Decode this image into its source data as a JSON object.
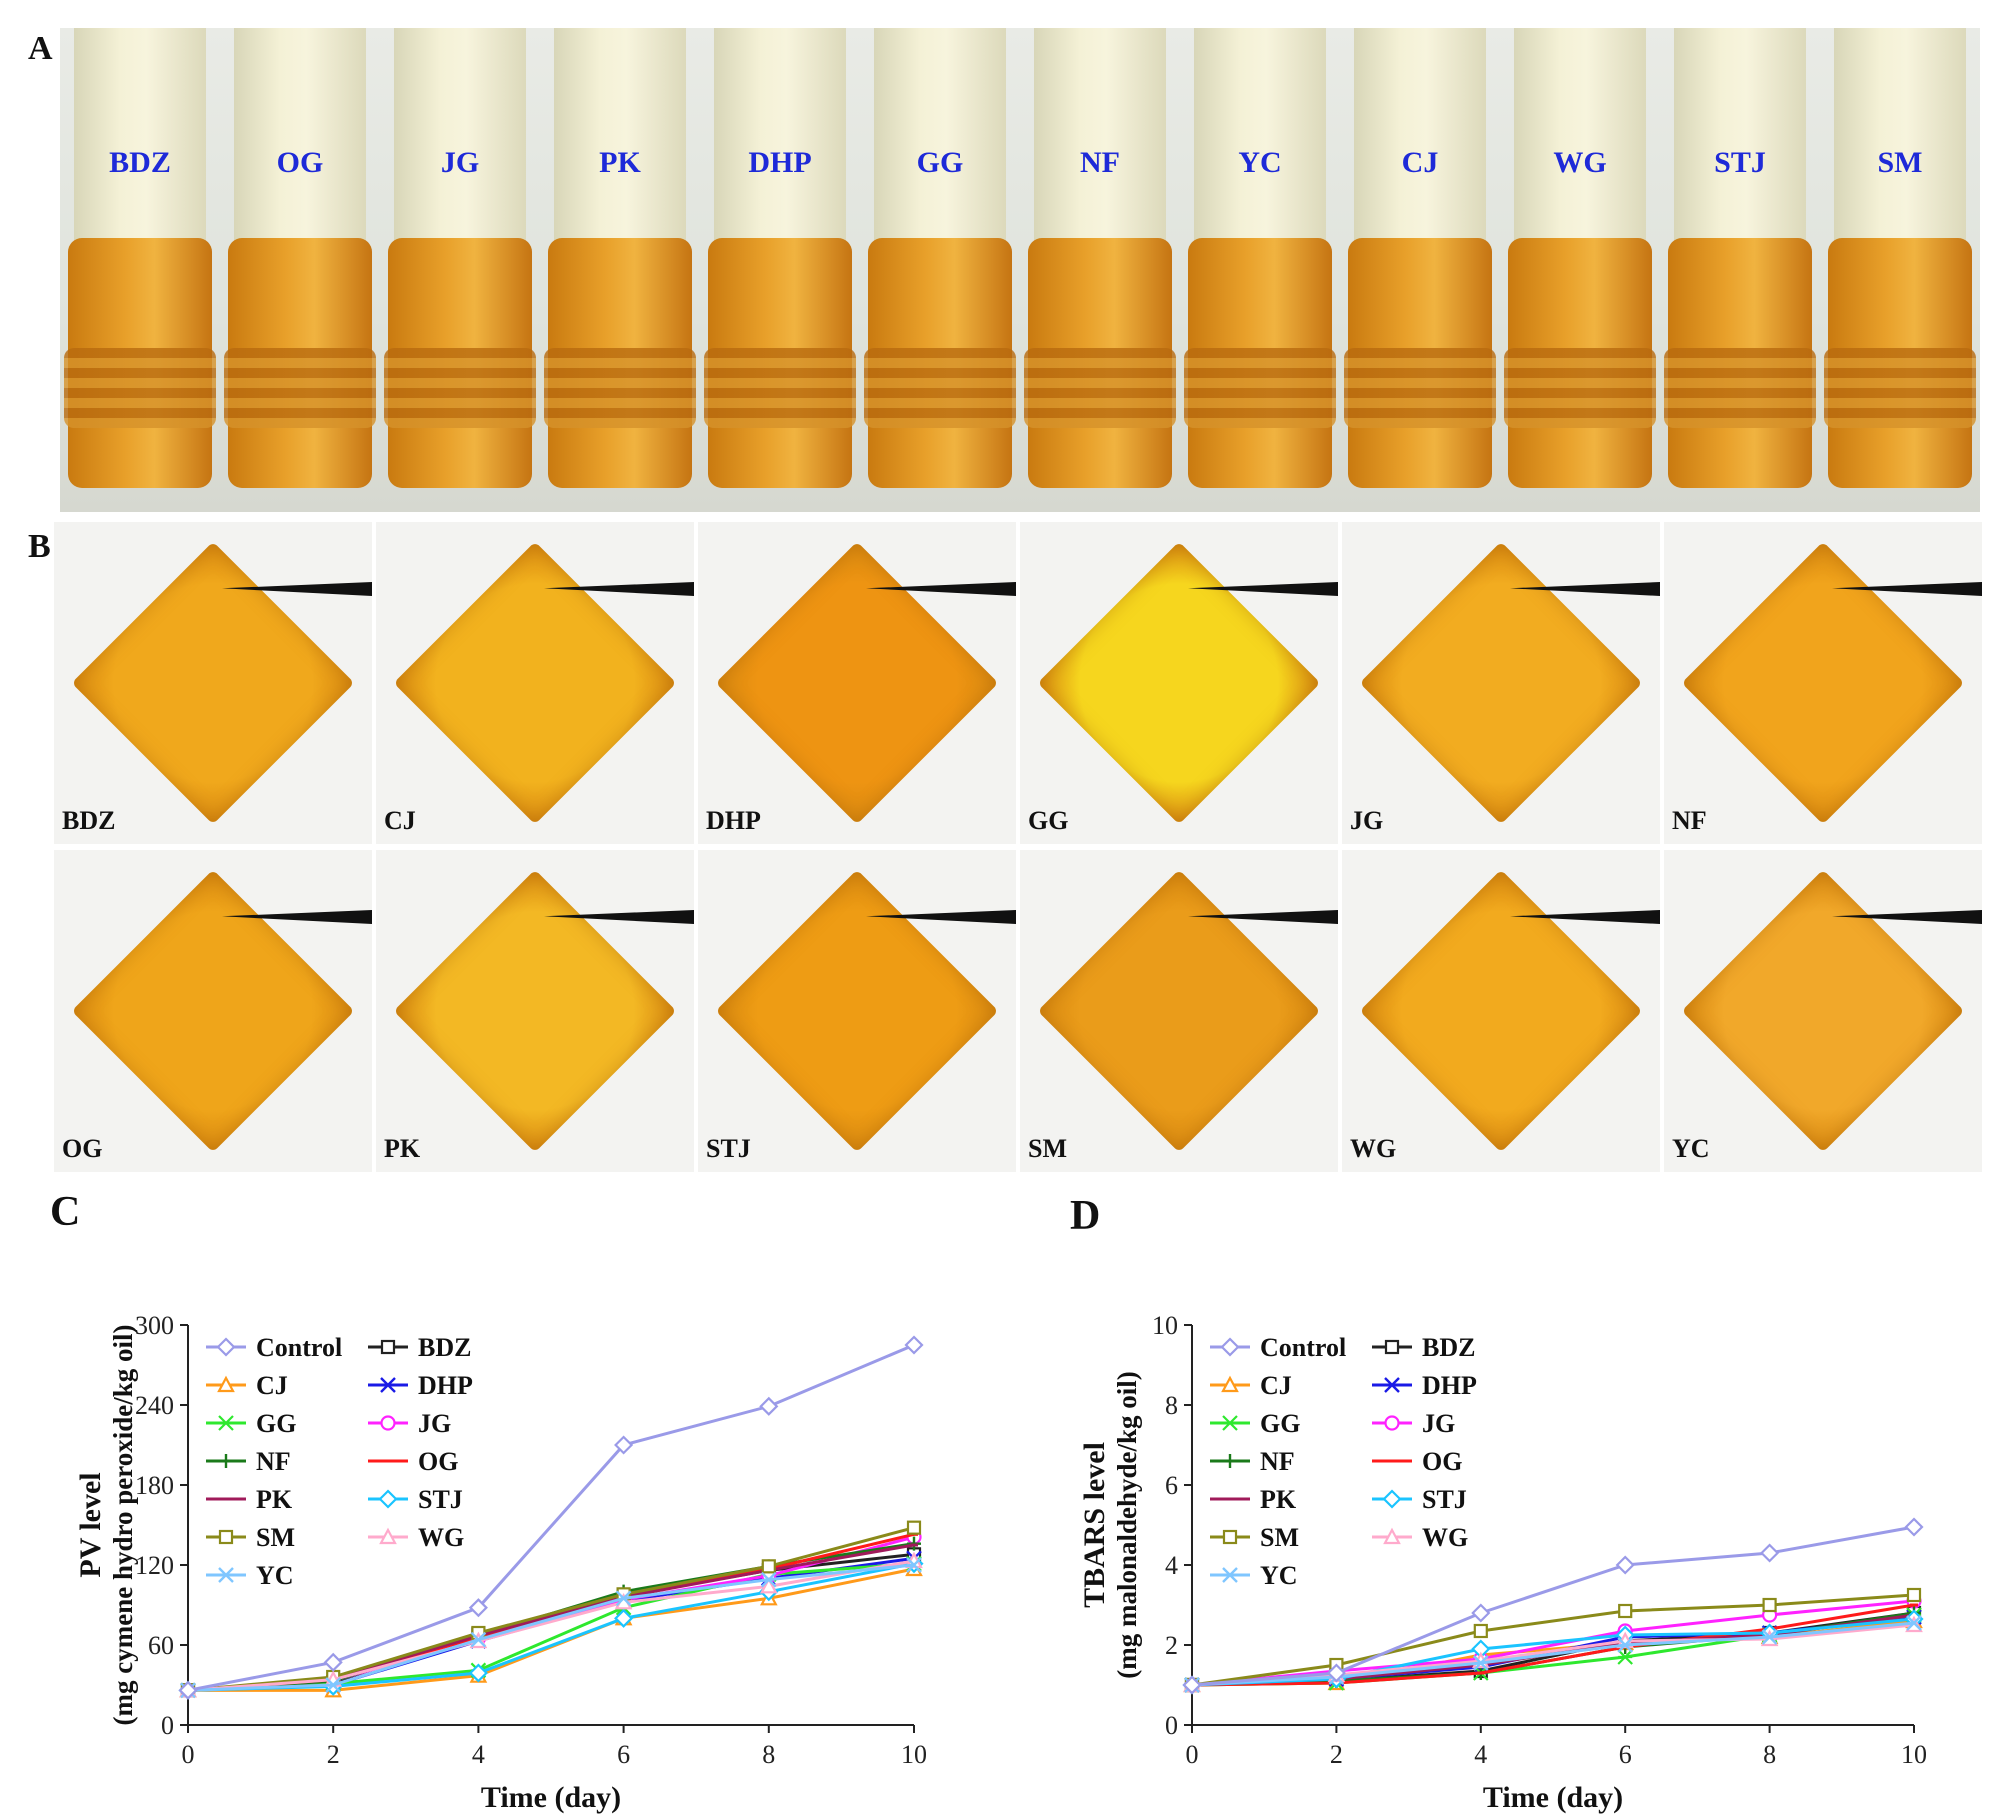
{
  "panels": {
    "A": "A",
    "B": "B",
    "C": "C",
    "D": "D"
  },
  "tube_labels": [
    "BDZ",
    "OG",
    "JG",
    "PK",
    "DHP",
    "GG",
    "NF",
    "YC",
    "CJ",
    "WG",
    "STJ",
    "SM"
  ],
  "film_labels": [
    "BDZ",
    "CJ",
    "DHP",
    "GG",
    "JG",
    "NF",
    "OG",
    "PK",
    "STJ",
    "SM",
    "WG",
    "YC"
  ],
  "film_colors": [
    "#f0a81c",
    "#f2b21e",
    "#ee9412",
    "#f6d61e",
    "#f2ac20",
    "#f1a41c",
    "#efa51a",
    "#f3b824",
    "#ee9c14",
    "#ea9c1a",
    "#f2aa1e",
    "#f1a82a"
  ],
  "colors": {
    "Control": "#9a9ae8",
    "BDZ": "#222222",
    "CJ": "#ff9a1a",
    "DHP": "#1a1ae6",
    "GG": "#2ee82e",
    "JG": "#ff22ff",
    "NF": "#1a7a1a",
    "OG": "#ff1a1a",
    "PK": "#a01a5a",
    "STJ": "#1ac4ff",
    "SM": "#8a8a1a",
    "WG": "#ffaacc",
    "YC": "#7fc6ff"
  },
  "chart_data": [
    {
      "id": "C",
      "type": "line",
      "xlabel": "Time (day)",
      "ylabel": "PV level",
      "ylabel2": "(mg cymene hydro peroxide/kg oil)",
      "xlim": [
        0,
        10
      ],
      "ylim": [
        0,
        300
      ],
      "xticks": [
        0,
        2,
        4,
        6,
        8,
        10
      ],
      "yticks": [
        0,
        60,
        120,
        180,
        240,
        300
      ],
      "x": [
        0,
        2,
        4,
        6,
        8,
        10
      ],
      "series": [
        {
          "name": "Control",
          "marker": "diamond",
          "values": [
            26,
            47,
            88,
            210,
            239,
            285
          ]
        },
        {
          "name": "BDZ",
          "marker": "square",
          "values": [
            26,
            32,
            68,
            97,
            116,
            128
          ]
        },
        {
          "name": "CJ",
          "marker": "triangle",
          "values": [
            26,
            26,
            37,
            80,
            95,
            117
          ]
        },
        {
          "name": "DHP",
          "marker": "x",
          "values": [
            26,
            30,
            63,
            93,
            110,
            125
          ]
        },
        {
          "name": "GG",
          "marker": "star",
          "values": [
            26,
            31,
            41,
            88,
            113,
            121
          ]
        },
        {
          "name": "JG",
          "marker": "circle",
          "values": [
            26,
            33,
            65,
            94,
            112,
            141
          ]
        },
        {
          "name": "NF",
          "marker": "plus",
          "values": [
            26,
            33,
            67,
            100,
            119,
            136
          ]
        },
        {
          "name": "OG",
          "marker": "line",
          "values": [
            26,
            34,
            66,
            96,
            117,
            143
          ]
        },
        {
          "name": "PK",
          "marker": "line",
          "values": [
            26,
            35,
            67,
            96,
            116,
            135
          ]
        },
        {
          "name": "STJ",
          "marker": "diamond",
          "values": [
            26,
            29,
            39,
            80,
            100,
            121
          ]
        },
        {
          "name": "SM",
          "marker": "square",
          "values": [
            26,
            36,
            69,
            98,
            119,
            148
          ]
        },
        {
          "name": "WG",
          "marker": "triangle",
          "values": [
            26,
            34,
            63,
            92,
            104,
            123
          ]
        },
        {
          "name": "YC",
          "marker": "x",
          "values": [
            26,
            30,
            64,
            95,
            109,
            120
          ]
        }
      ]
    },
    {
      "id": "D",
      "type": "line",
      "xlabel": "Time (day)",
      "ylabel": "TBARS level",
      "ylabel2": "(mg malonaldehyde/kg oil)",
      "xlim": [
        0,
        10
      ],
      "ylim": [
        0,
        10
      ],
      "xticks": [
        0,
        2,
        4,
        6,
        8,
        10
      ],
      "yticks": [
        0,
        2,
        4,
        6,
        8,
        10
      ],
      "x": [
        0,
        2,
        4,
        6,
        8,
        10
      ],
      "series": [
        {
          "name": "Control",
          "marker": "diamond",
          "values": [
            1.0,
            1.3,
            2.8,
            4.0,
            4.3,
            4.95
          ]
        },
        {
          "name": "BDZ",
          "marker": "square",
          "values": [
            1.0,
            1.1,
            1.35,
            2.1,
            2.3,
            2.8
          ]
        },
        {
          "name": "CJ",
          "marker": "triangle",
          "values": [
            1.0,
            1.05,
            1.75,
            2.05,
            2.2,
            2.6
          ]
        },
        {
          "name": "DHP",
          "marker": "x",
          "values": [
            1.0,
            1.15,
            1.45,
            2.2,
            2.3,
            2.7
          ]
        },
        {
          "name": "GG",
          "marker": "star",
          "values": [
            1.0,
            1.05,
            1.3,
            1.7,
            2.25,
            2.75
          ]
        },
        {
          "name": "JG",
          "marker": "circle",
          "values": [
            1.0,
            1.35,
            1.65,
            2.35,
            2.75,
            3.1
          ]
        },
        {
          "name": "NF",
          "marker": "plus",
          "values": [
            1.0,
            1.1,
            1.3,
            1.95,
            2.25,
            2.8
          ]
        },
        {
          "name": "OG",
          "marker": "line",
          "values": [
            1.0,
            1.05,
            1.3,
            1.95,
            2.4,
            3.0
          ]
        },
        {
          "name": "PK",
          "marker": "line",
          "values": [
            1.0,
            1.15,
            1.5,
            2.05,
            2.25,
            2.75
          ]
        },
        {
          "name": "STJ",
          "marker": "diamond",
          "values": [
            1.0,
            1.15,
            1.9,
            2.25,
            2.3,
            2.65
          ]
        },
        {
          "name": "SM",
          "marker": "square",
          "values": [
            1.0,
            1.5,
            2.35,
            2.85,
            3.0,
            3.25
          ]
        },
        {
          "name": "WG",
          "marker": "triangle",
          "values": [
            1.0,
            1.25,
            1.6,
            2.1,
            2.15,
            2.5
          ]
        },
        {
          "name": "YC",
          "marker": "x",
          "values": [
            1.0,
            1.2,
            1.55,
            2.0,
            2.2,
            2.55
          ]
        }
      ]
    }
  ]
}
